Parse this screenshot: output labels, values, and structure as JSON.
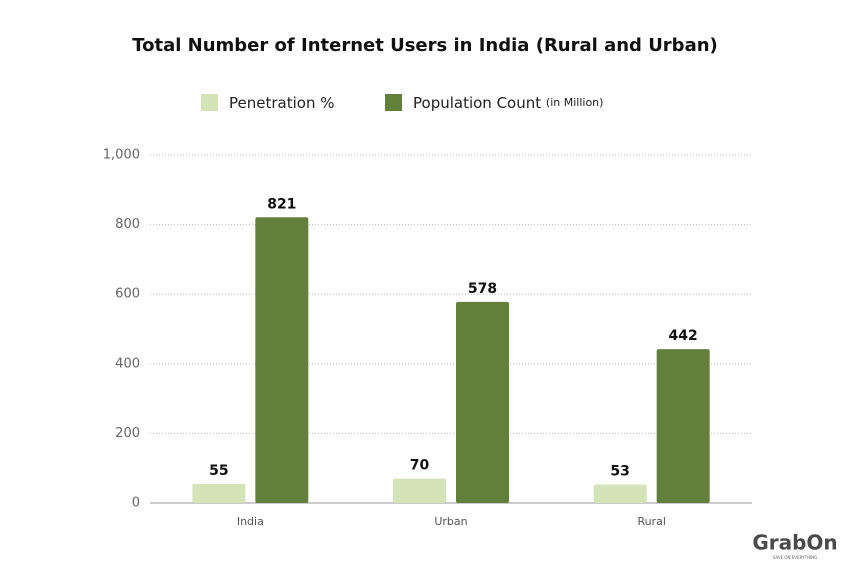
{
  "chart_data": {
    "type": "bar",
    "title": "Total Number of Internet Users in India (Rural and Urban)",
    "categories": [
      "India",
      "Urban",
      "Rural"
    ],
    "series": [
      {
        "name": "Penetration %",
        "color": "#d5e3b8",
        "values": [
          55,
          70,
          53
        ]
      },
      {
        "name": "Population Count",
        "unit": "(in Million)",
        "color": "#62803c",
        "values": [
          821,
          578,
          442
        ]
      }
    ],
    "ylim": [
      0,
      1000
    ],
    "yticks": [
      0,
      200,
      400,
      600,
      800,
      {
        "value": 1000,
        "label": "1,000"
      }
    ],
    "grid": true,
    "watermark": "GrabOn",
    "watermark_tagline": "SAVE ON EVERYTHING"
  }
}
